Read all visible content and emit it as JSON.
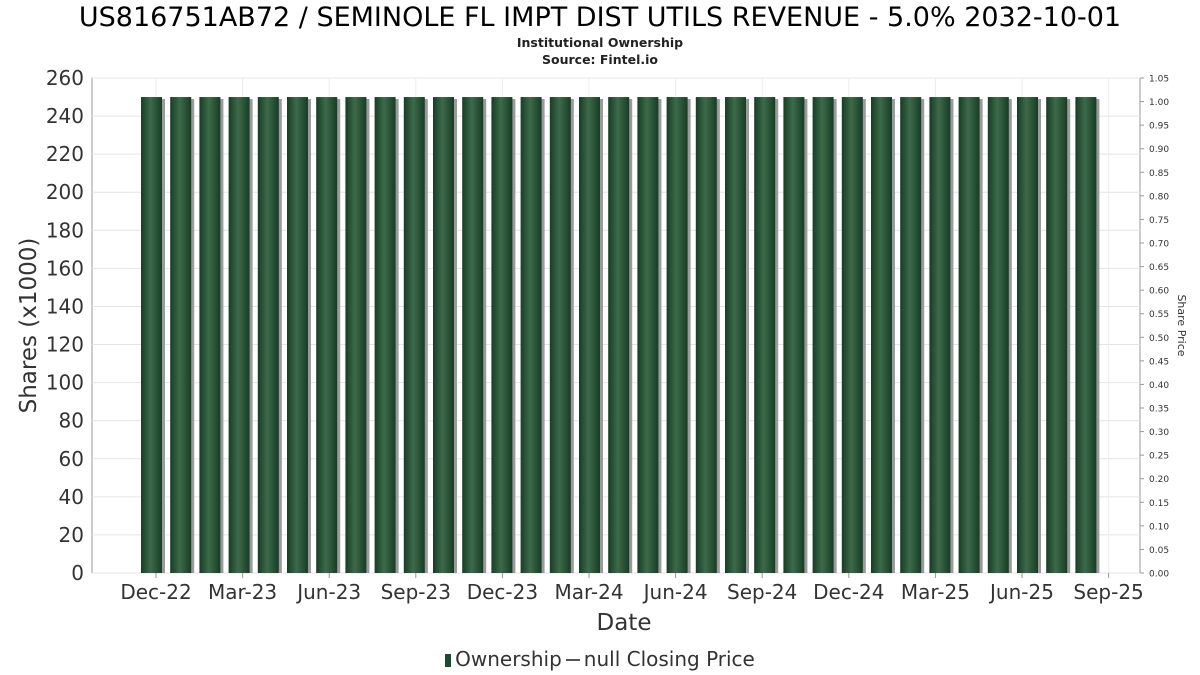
{
  "chart_data": {
    "type": "bar",
    "title": "US816751AB72 / SEMINOLE FL IMPT DIST UTILS REVENUE - 5.0% 2032-10-01",
    "subtitle": "Institutional Ownership",
    "source": "Source: Fintel.io",
    "xlabel": "Date",
    "ylabel": "Shares (x1000)",
    "y2label": "Share Price",
    "ylim": [
      0,
      260
    ],
    "y2lim": [
      0,
      1.05
    ],
    "yticks": [
      0,
      20,
      40,
      60,
      80,
      100,
      120,
      140,
      160,
      180,
      200,
      220,
      240,
      260
    ],
    "y2ticks": [
      "0.00",
      "0.05",
      "0.10",
      "0.15",
      "0.20",
      "0.25",
      "0.30",
      "0.35",
      "0.40",
      "0.45",
      "0.50",
      "0.55",
      "0.60",
      "0.65",
      "0.70",
      "0.75",
      "0.80",
      "0.85",
      "0.90",
      "0.95",
      "1.00",
      "1.05"
    ],
    "xticks": [
      "Dec-22",
      "Mar-23",
      "Jun-23",
      "Sep-23",
      "Dec-23",
      "Mar-24",
      "Jun-24",
      "Sep-24",
      "Dec-24",
      "Mar-25",
      "Jun-25",
      "Sep-25"
    ],
    "grid": true,
    "legend_position": "bottom",
    "series": [
      {
        "name": "Ownership",
        "color": "#1d4a2c",
        "values": [
          250,
          250,
          250,
          250,
          250,
          250,
          250,
          250,
          250,
          250,
          250,
          250,
          250,
          250,
          250,
          250,
          250,
          250,
          250,
          250,
          250,
          250,
          250,
          250,
          250,
          250,
          250,
          250,
          250,
          250,
          250,
          250,
          250
        ]
      }
    ],
    "legend": {
      "ownership_label": "Ownership",
      "price_label": "null Closing Price"
    }
  }
}
